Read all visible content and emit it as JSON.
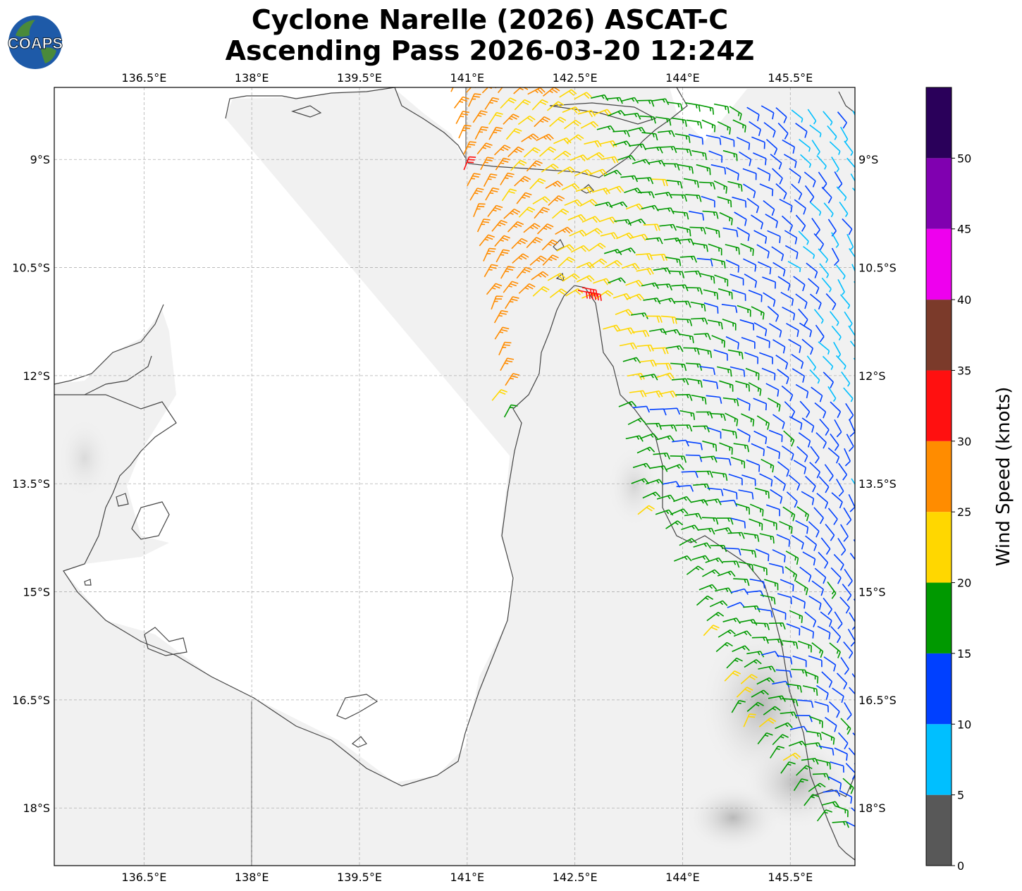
{
  "title": {
    "line1": "Cyclone Narelle (2026) ASCAT-C",
    "line2": "Ascending Pass 2026-03-20 12:24Z"
  },
  "logo": {
    "text": "COAPS",
    "icon": "globe-logo-icon"
  },
  "map": {
    "lon_range": [
      135.25,
      146.4
    ],
    "lat_range": [
      -18.8,
      -8.0
    ],
    "lon_ticks": [
      {
        "value": 136.5,
        "label": "136.5°E"
      },
      {
        "value": 138,
        "label": "138°E"
      },
      {
        "value": 139.5,
        "label": "139.5°E"
      },
      {
        "value": 141,
        "label": "141°E"
      },
      {
        "value": 142.5,
        "label": "142.5°E"
      },
      {
        "value": 144,
        "label": "144°E"
      },
      {
        "value": 145.5,
        "label": "145.5°E"
      }
    ],
    "lat_ticks": [
      {
        "value": -9,
        "label": "9°S"
      },
      {
        "value": -10.5,
        "label": "10.5°S"
      },
      {
        "value": -12,
        "label": "12°S"
      },
      {
        "value": -13.5,
        "label": "13.5°S"
      },
      {
        "value": -15,
        "label": "15°S"
      },
      {
        "value": -16.5,
        "label": "16.5°S"
      },
      {
        "value": -18,
        "label": "18°S"
      }
    ],
    "grid": true,
    "basemap": "grayscale topography with coastline outlines"
  },
  "colorbar": {
    "label": "Wind Speed (knots)",
    "range": [
      0,
      55
    ],
    "ticks": [
      0,
      5,
      10,
      15,
      20,
      25,
      30,
      35,
      40,
      45,
      50
    ],
    "bins": [
      {
        "from": 0,
        "to": 5,
        "color": "#585858"
      },
      {
        "from": 5,
        "to": 10,
        "color": "#00bfff"
      },
      {
        "from": 10,
        "to": 15,
        "color": "#0040ff"
      },
      {
        "from": 15,
        "to": 20,
        "color": "#009900"
      },
      {
        "from": 20,
        "to": 25,
        "color": "#ffd700"
      },
      {
        "from": 25,
        "to": 30,
        "color": "#ff8c00"
      },
      {
        "from": 30,
        "to": 35,
        "color": "#ff1010"
      },
      {
        "from": 35,
        "to": 40,
        "color": "#7b3a2a"
      },
      {
        "from": 40,
        "to": 45,
        "color": "#ee00ee"
      },
      {
        "from": 45,
        "to": 50,
        "color": "#8000b0"
      },
      {
        "from": 50,
        "to": 55,
        "color": "#2a005a"
      }
    ]
  }
}
